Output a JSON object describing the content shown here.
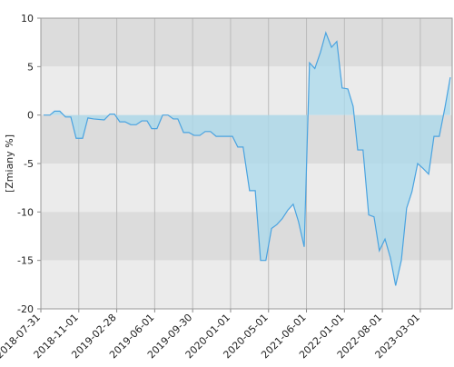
{
  "chart_data": {
    "type": "area",
    "y_label": "[Zmiany %]",
    "x": [
      0.07,
      0.24,
      0.36,
      0.5,
      0.65,
      0.79,
      0.93,
      1.1,
      1.24,
      1.39,
      1.67,
      1.82,
      1.94,
      2.08,
      2.22,
      2.37,
      2.51,
      2.66,
      2.8,
      2.92,
      3.06,
      3.21,
      3.35,
      3.49,
      3.61,
      3.76,
      3.9,
      4.04,
      4.19,
      4.33,
      4.47,
      4.62,
      5.05,
      5.19,
      5.33,
      5.5,
      5.65,
      5.79,
      5.93,
      6.08,
      6.22,
      6.36,
      6.51,
      6.65,
      6.79,
      6.94,
      7.08,
      7.22,
      7.37,
      7.51,
      7.66,
      7.8,
      7.94,
      8.09,
      8.23,
      8.35,
      8.49,
      8.64,
      8.78,
      8.92,
      9.07,
      9.21,
      9.35,
      9.5,
      9.64,
      9.78,
      9.93,
      10.07,
      10.22,
      10.36,
      10.5,
      10.65,
      10.79
    ],
    "values": [
      0,
      0,
      0.4,
      0.4,
      -0.2,
      -0.2,
      -2.4,
      -2.4,
      -0.3,
      -0.4,
      -0.5,
      0.1,
      0.1,
      -0.7,
      -0.7,
      -1,
      -1,
      -0.6,
      -0.6,
      -1.4,
      -1.4,
      0,
      0,
      -0.4,
      -0.4,
      -1.8,
      -1.8,
      -2.1,
      -2.1,
      -1.7,
      -1.7,
      -2.2,
      -2.2,
      -3.3,
      -3.3,
      -7.8,
      -7.8,
      -15,
      -15,
      -11.7,
      -11.3,
      -10.7,
      -9.8,
      -9.2,
      -11,
      -13.6,
      5.4,
      4.8,
      6.5,
      8.5,
      7,
      7.6,
      2.8,
      2.7,
      0.9,
      -3.6,
      -3.6,
      -10.3,
      -10.5,
      -14,
      -12.8,
      -14.7,
      -17.6,
      -15,
      -9.6,
      -7.9,
      -5,
      -5.5,
      -6.1,
      -2.2,
      -2.2,
      0.8,
      3.9
    ],
    "color": "#4aa3e0",
    "fill": "#a9d9ec",
    "xlim": [
      0,
      10.84
    ],
    "ylim": [
      -20,
      10
    ],
    "xticks": [
      {
        "value": 0,
        "label": "2018-07-31"
      },
      {
        "value": 1,
        "label": "2018-11-01"
      },
      {
        "value": 2,
        "label": "2019-02-28"
      },
      {
        "value": 3,
        "label": "2019-06-01"
      },
      {
        "value": 4,
        "label": "2019-09-30"
      },
      {
        "value": 5,
        "label": "2020-01-01"
      },
      {
        "value": 6,
        "label": "2020-05-01"
      },
      {
        "value": 7,
        "label": "2021-06-01"
      },
      {
        "value": 8,
        "label": "2022-01-01"
      },
      {
        "value": 9,
        "label": "2022-08-01"
      },
      {
        "value": 10,
        "label": "2023-03-01"
      }
    ],
    "yticks": [
      10,
      5,
      0,
      -5,
      -10,
      -15,
      -20
    ],
    "grid": true
  }
}
